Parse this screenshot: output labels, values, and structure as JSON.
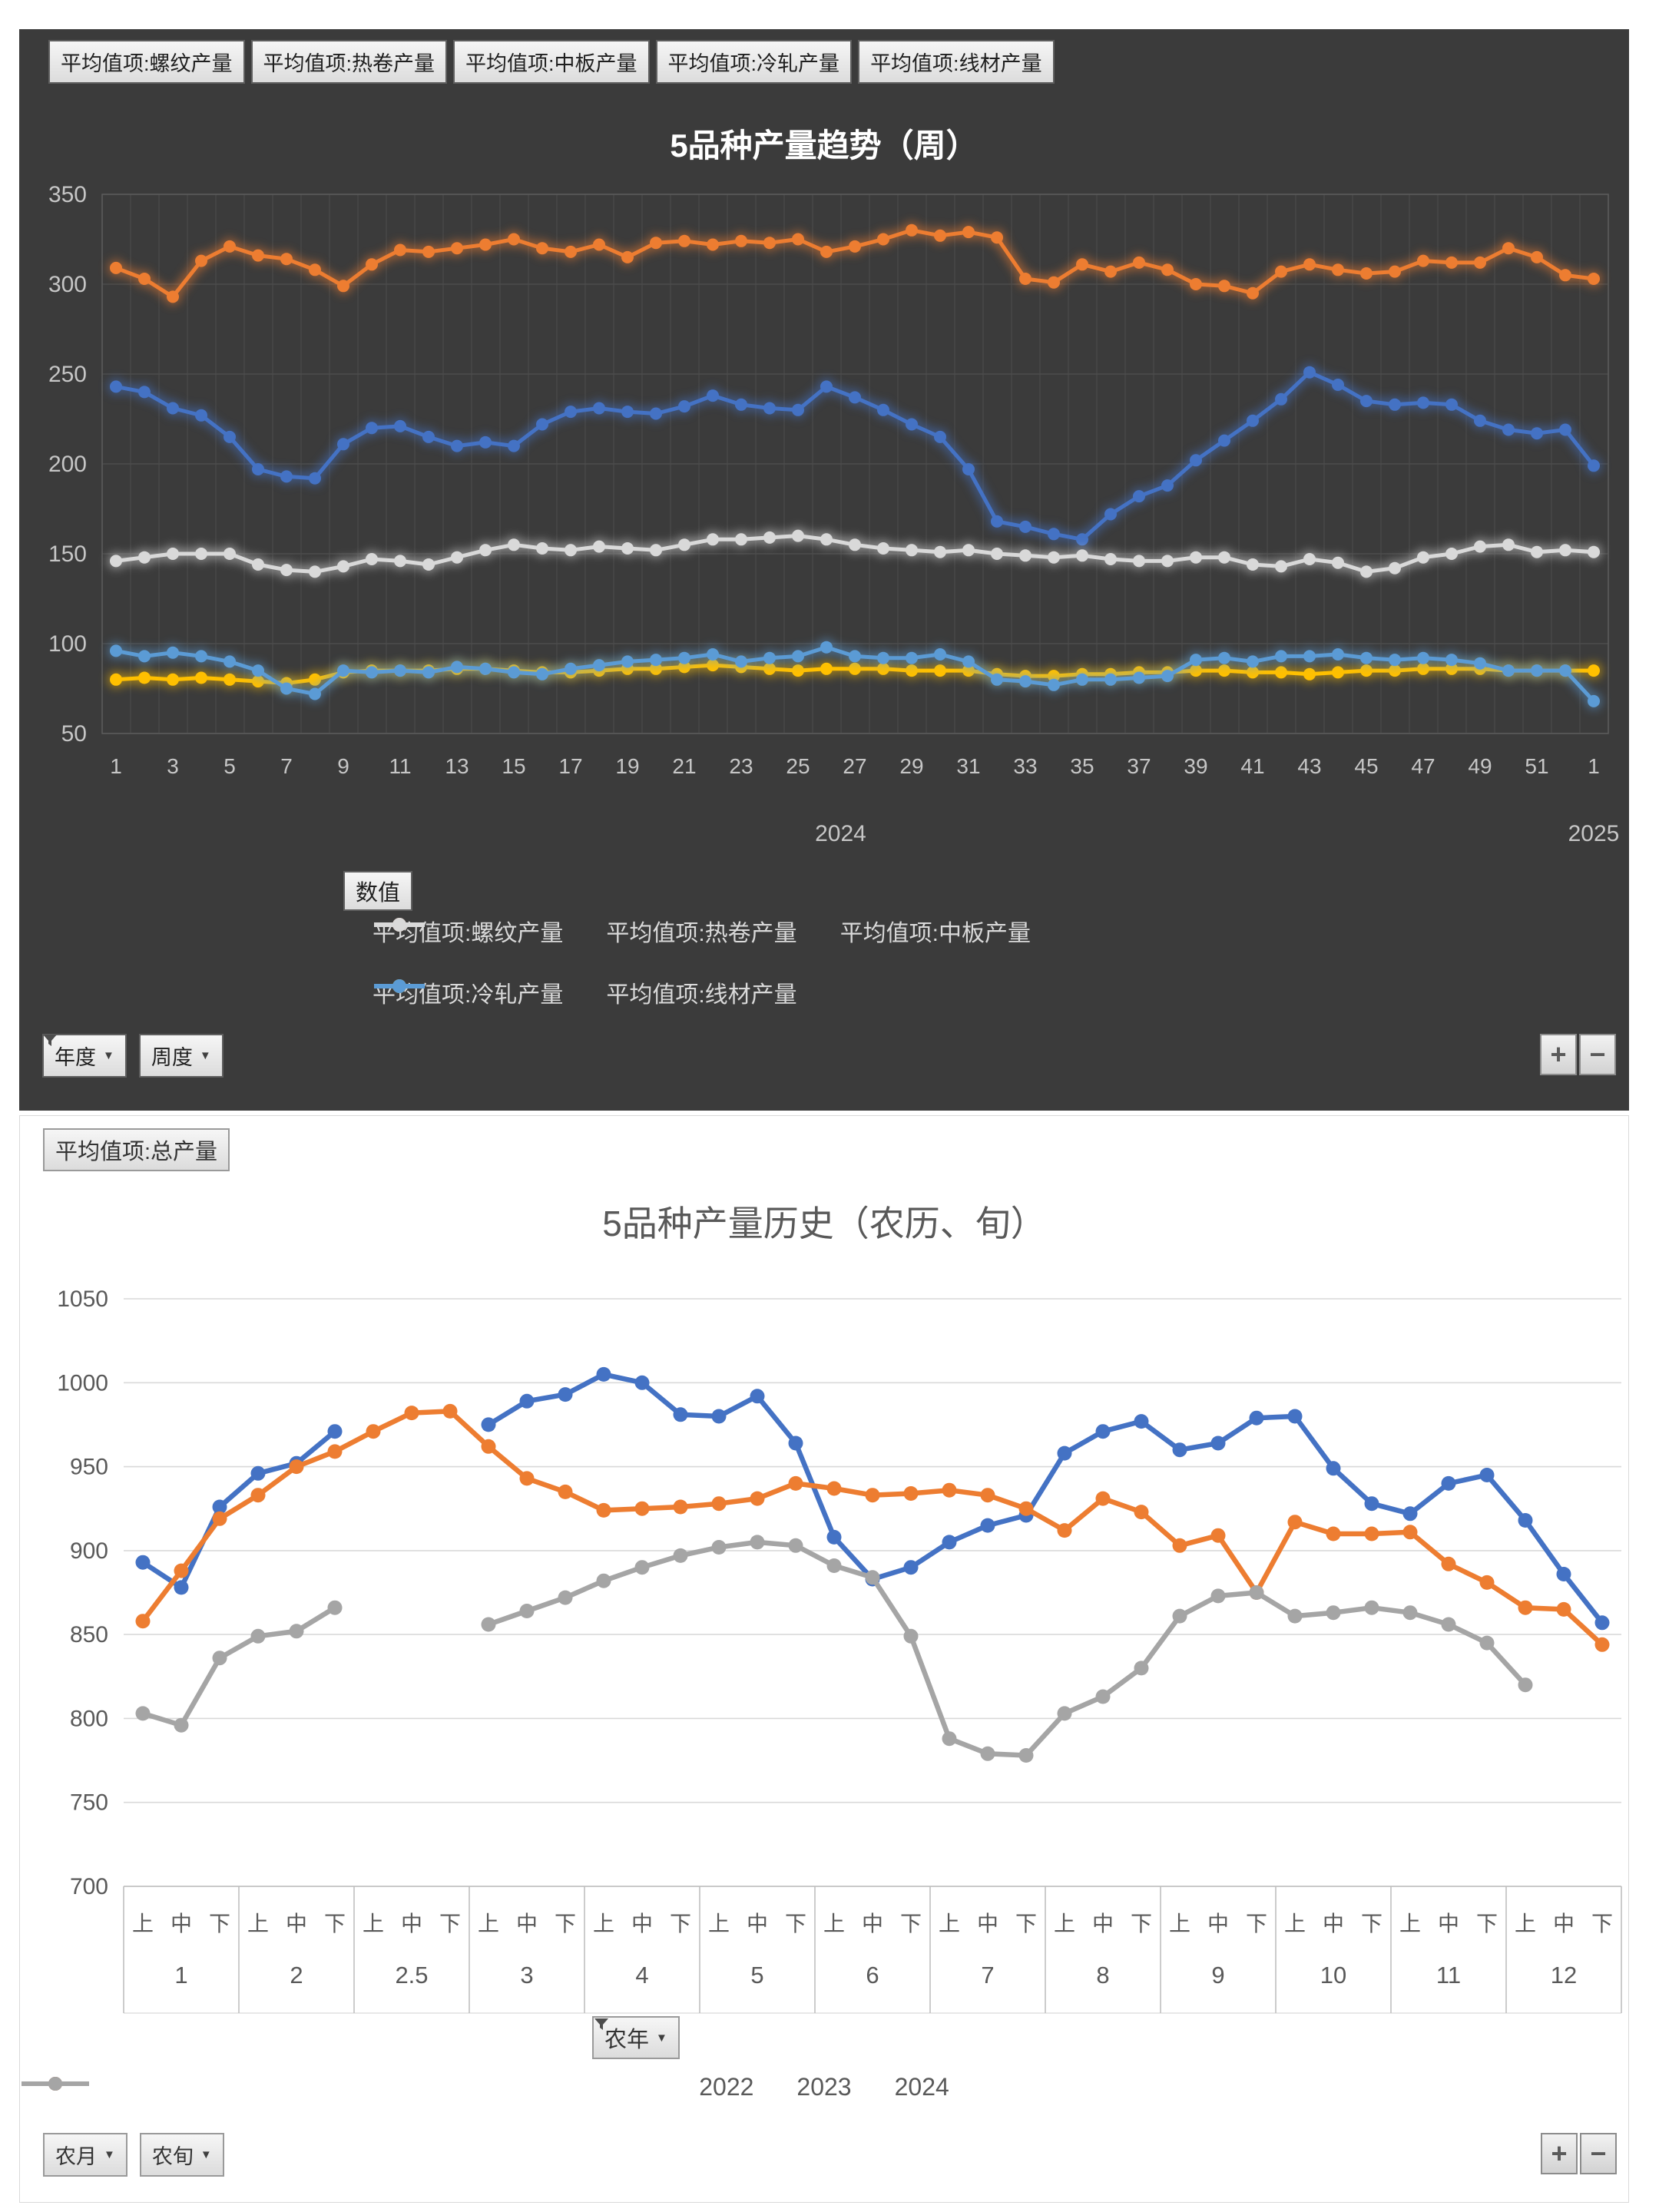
{
  "top": {
    "field_buttons": [
      "平均值项:螺纹产量",
      "平均值项:热卷产量",
      "平均值项:中板产量",
      "平均值项:冷轧产量",
      "平均值项:线材产量"
    ],
    "title": "5品种产量趋势（周）",
    "value_button": "数值",
    "filters": [
      {
        "label": "年度",
        "filtered": true
      },
      {
        "label": "周度",
        "filtered": false
      }
    ],
    "zoom_buttons": [
      "+",
      "−"
    ]
  },
  "bottom": {
    "field_button": "平均值项:总产量",
    "title": "5品种产量历史（农历、旬）",
    "year_filter": {
      "label": "农年",
      "filtered": true
    },
    "filters": [
      {
        "label": "农月",
        "filtered": false
      },
      {
        "label": "农旬",
        "filtered": false
      }
    ],
    "zoom_buttons": [
      "+",
      "−"
    ]
  },
  "chart_data": [
    {
      "type": "line",
      "title": "5品种产量趋势（周）",
      "xlabel": "周 (2024 → 2025)",
      "ylabel": "数值",
      "ylim": [
        50,
        350
      ],
      "ytick_step": 50,
      "grid": true,
      "legend_position": "bottom",
      "categories": [
        "1",
        "2",
        "3",
        "4",
        "5",
        "6",
        "7",
        "8",
        "9",
        "10",
        "11",
        "12",
        "13",
        "14",
        "15",
        "16",
        "17",
        "18",
        "19",
        "20",
        "21",
        "22",
        "23",
        "24",
        "25",
        "26",
        "27",
        "28",
        "29",
        "30",
        "31",
        "32",
        "33",
        "34",
        "35",
        "36",
        "37",
        "38",
        "39",
        "40",
        "41",
        "42",
        "43",
        "44",
        "45",
        "46",
        "47",
        "48",
        "49",
        "50",
        "51",
        "52",
        "1"
      ],
      "x_groups": [
        {
          "label": "2024",
          "count": 52
        },
        {
          "label": "2025",
          "count": 1
        }
      ],
      "series": [
        {
          "name": "平均值项:螺纹产量",
          "color": "#4472c4",
          "values": [
            243,
            240,
            231,
            227,
            215,
            197,
            193,
            192,
            211,
            220,
            221,
            215,
            210,
            212,
            210,
            222,
            229,
            231,
            229,
            228,
            232,
            238,
            233,
            231,
            230,
            243,
            237,
            230,
            222,
            215,
            197,
            168,
            165,
            161,
            158,
            172,
            182,
            188,
            202,
            213,
            224,
            236,
            251,
            244,
            235,
            233,
            234,
            233,
            224,
            219,
            217,
            219,
            199
          ]
        },
        {
          "name": "平均值项:热卷产量",
          "color": "#ed7d31",
          "values": [
            309,
            303,
            293,
            313,
            321,
            316,
            314,
            308,
            299,
            311,
            319,
            318,
            320,
            322,
            325,
            320,
            318,
            322,
            315,
            323,
            324,
            322,
            324,
            323,
            325,
            318,
            321,
            325,
            330,
            327,
            329,
            326,
            303,
            301,
            311,
            307,
            312,
            308,
            300,
            299,
            295,
            307,
            311,
            308,
            306,
            307,
            313,
            312,
            312,
            320,
            315,
            305,
            303
          ]
        },
        {
          "name": "平均值项:中板产量",
          "color": "#d9d9d9",
          "values": [
            146,
            148,
            150,
            150,
            150,
            144,
            141,
            140,
            143,
            147,
            146,
            144,
            148,
            152,
            155,
            153,
            152,
            154,
            153,
            152,
            155,
            158,
            158,
            159,
            160,
            158,
            155,
            153,
            152,
            151,
            152,
            150,
            149,
            148,
            149,
            147,
            146,
            146,
            148,
            148,
            144,
            143,
            147,
            145,
            140,
            142,
            148,
            150,
            154,
            155,
            151,
            152,
            151
          ]
        },
        {
          "name": "平均值项:冷轧产量",
          "color": "#ffc000",
          "values": [
            80,
            81,
            80,
            81,
            80,
            79,
            78,
            80,
            84,
            85,
            85,
            85,
            86,
            86,
            85,
            84,
            84,
            85,
            86,
            86,
            87,
            88,
            87,
            86,
            85,
            86,
            86,
            86,
            85,
            85,
            85,
            83,
            82,
            82,
            83,
            83,
            84,
            84,
            85,
            85,
            84,
            84,
            83,
            84,
            85,
            85,
            86,
            86,
            86,
            85,
            85,
            85,
            85
          ]
        },
        {
          "name": "平均值项:线材产量",
          "color": "#5b9bd5",
          "values": [
            96,
            93,
            95,
            93,
            90,
            85,
            75,
            72,
            85,
            84,
            85,
            84,
            87,
            86,
            84,
            83,
            86,
            88,
            90,
            91,
            92,
            94,
            90,
            92,
            93,
            98,
            93,
            92,
            92,
            94,
            90,
            80,
            79,
            77,
            80,
            80,
            81,
            82,
            91,
            92,
            90,
            93,
            93,
            94,
            92,
            91,
            92,
            91,
            89,
            85,
            85,
            85,
            68
          ]
        }
      ]
    },
    {
      "type": "line",
      "title": "5品种产量历史（农历、旬）",
      "xlabel": "农月 / 农旬",
      "ylim": [
        700,
        1050
      ],
      "ytick_step": 50,
      "grid": true,
      "legend_position": "bottom",
      "month_groups": [
        "1",
        "2",
        "2.5",
        "3",
        "4",
        "5",
        "6",
        "7",
        "8",
        "9",
        "10",
        "11",
        "12"
      ],
      "periods": [
        "上",
        "中",
        "下"
      ],
      "series": [
        {
          "name": "2022",
          "color": "#4472c4",
          "values": [
            893,
            878,
            926,
            946,
            952,
            971,
            null,
            null,
            null,
            975,
            989,
            993,
            1005,
            1000,
            981,
            980,
            992,
            964,
            908,
            883,
            890,
            905,
            915,
            921,
            958,
            971,
            977,
            960,
            964,
            979,
            980,
            949,
            928,
            922,
            940,
            945,
            918,
            886,
            857
          ]
        },
        {
          "name": "2023",
          "color": "#ed7d31",
          "values": [
            858,
            888,
            919,
            933,
            950,
            959,
            971,
            982,
            983,
            962,
            943,
            935,
            924,
            925,
            926,
            928,
            931,
            940,
            937,
            933,
            934,
            936,
            933,
            925,
            912,
            931,
            923,
            903,
            909,
            875,
            917,
            910,
            910,
            911,
            892,
            881,
            866,
            865,
            844
          ]
        },
        {
          "name": "2024",
          "color": "#a5a5a5",
          "values": [
            803,
            796,
            836,
            849,
            852,
            866,
            null,
            null,
            null,
            856,
            864,
            872,
            882,
            890,
            897,
            902,
            905,
            903,
            891,
            884,
            849,
            788,
            779,
            778,
            803,
            813,
            830,
            861,
            873,
            875,
            861,
            863,
            866,
            863,
            856,
            845,
            820,
            null,
            null
          ]
        }
      ]
    }
  ]
}
